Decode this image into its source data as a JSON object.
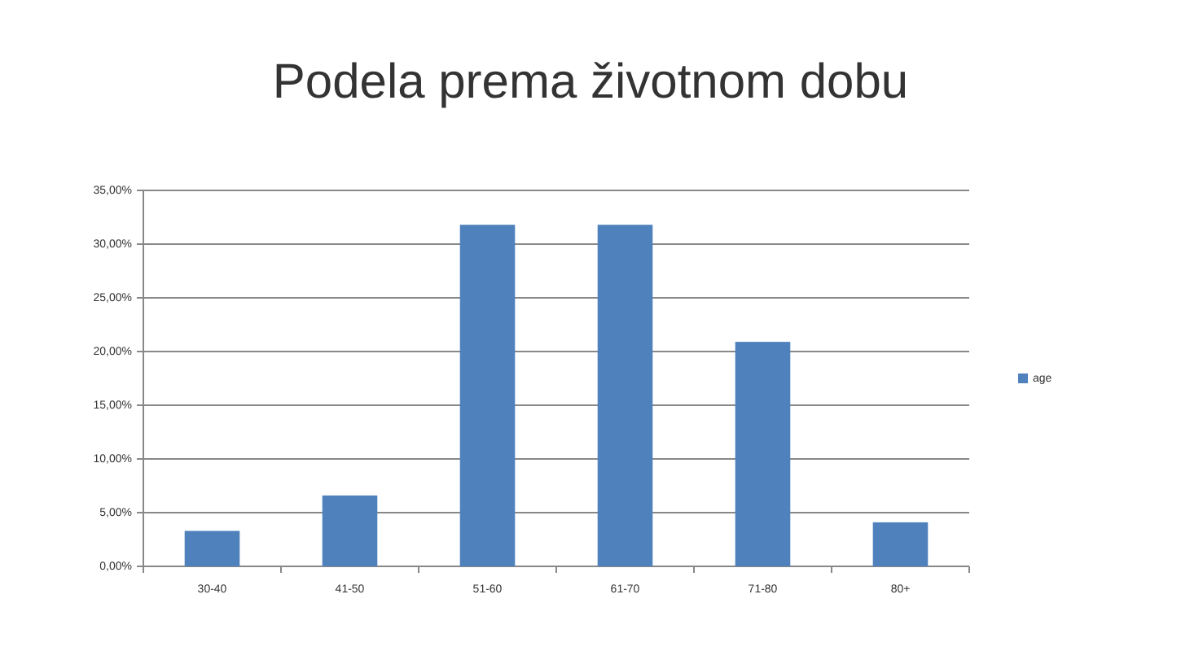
{
  "chart_data": {
    "type": "bar",
    "title": "Podela prema životnom dobu",
    "categories": [
      "30-40",
      "41-50",
      "51-60",
      "61-70",
      "71-80",
      "80+"
    ],
    "series": [
      {
        "name": "age",
        "color": "#4f81bd",
        "values": [
          3.3,
          6.6,
          31.8,
          31.8,
          20.9,
          4.1
        ]
      }
    ],
    "ylim": [
      0,
      35
    ],
    "yticks": [
      {
        "value": 0,
        "label": "0,00%"
      },
      {
        "value": 5,
        "label": "5,00%"
      },
      {
        "value": 10,
        "label": "10,00%"
      },
      {
        "value": 15,
        "label": "15,00%"
      },
      {
        "value": 20,
        "label": "20,00%"
      },
      {
        "value": 25,
        "label": "25,00%"
      },
      {
        "value": 30,
        "label": "30,00%"
      },
      {
        "value": 35,
        "label": "35,00%"
      }
    ],
    "grid": "y",
    "legend": "right"
  }
}
